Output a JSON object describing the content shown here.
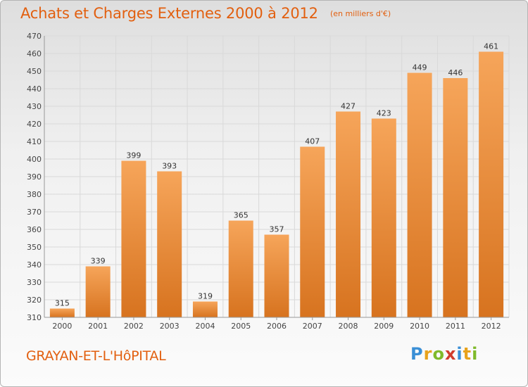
{
  "header": {
    "title": "Achats et Charges Externes 2000 à 2012",
    "subtitle": "(en milliers d'€)"
  },
  "footer": {
    "commune": "GRAYAN-ET-L'HôPITAL",
    "brand": "Proxiti"
  },
  "colors": {
    "bar_top": "#f6a55a",
    "bar_bottom": "#d7731f",
    "accent": "#e25f0f",
    "grid": "#d9d9d9"
  },
  "chart_data": {
    "type": "bar",
    "categories": [
      "2000",
      "2001",
      "2002",
      "2003",
      "2004",
      "2005",
      "2006",
      "2007",
      "2008",
      "2009",
      "2010",
      "2011",
      "2012"
    ],
    "values": [
      315,
      339,
      399,
      393,
      319,
      365,
      357,
      407,
      427,
      423,
      449,
      446,
      461
    ],
    "title": "Achats et Charges Externes 2000 à 2012",
    "subtitle": "(en milliers d'€)",
    "xlabel": "",
    "ylabel": "",
    "ylim": [
      310,
      470
    ],
    "yticks": [
      310,
      320,
      330,
      340,
      350,
      360,
      370,
      380,
      390,
      400,
      410,
      420,
      430,
      440,
      450,
      460,
      470
    ],
    "grid": true,
    "legend": "none",
    "data_labels": true
  }
}
